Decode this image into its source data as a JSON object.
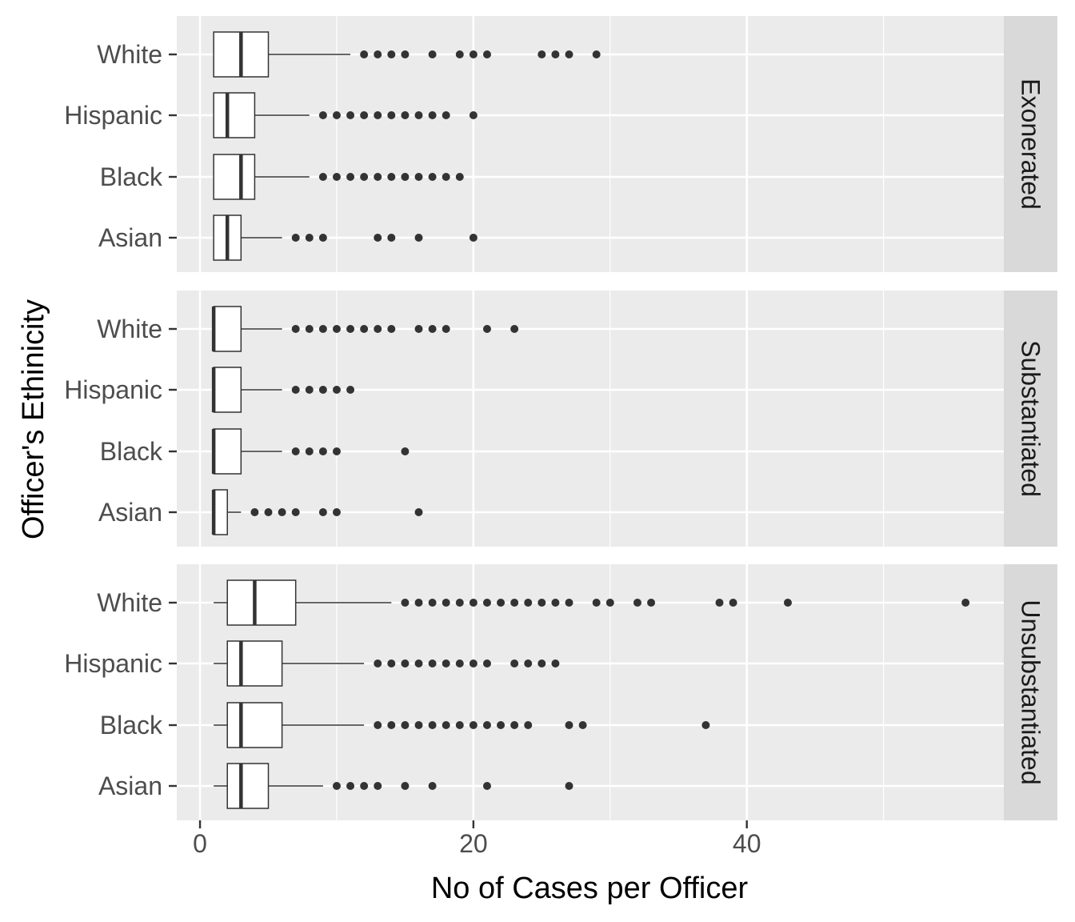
{
  "chart_data": {
    "type": "boxplot",
    "orientation": "horizontal",
    "facet": "rows",
    "xlabel": "No of Cases per Officer",
    "ylabel": "Officer's Ethinicity",
    "xlim": [
      -1.7,
      58.8
    ],
    "x_ticks": [
      0,
      20,
      40
    ],
    "categories": [
      "White",
      "Hispanic",
      "Black",
      "Asian"
    ],
    "grid": true,
    "colors": {
      "panel_bg": "#ebebeb",
      "strip_bg": "#d9d9d9",
      "grid": "#ffffff",
      "box_fill": "#ffffff",
      "box_line": "#333333",
      "outlier": "#333333"
    },
    "panels": [
      {
        "label": "Exonerated",
        "groups": [
          {
            "name": "White",
            "whisker_low": 1,
            "q1": 1,
            "median": 3,
            "q3": 5,
            "whisker_high": 11,
            "outliers": [
              12,
              13,
              14,
              15,
              17,
              19,
              20,
              21,
              25,
              26,
              27,
              29
            ]
          },
          {
            "name": "Hispanic",
            "whisker_low": 1,
            "q1": 1,
            "median": 2,
            "q3": 4,
            "whisker_high": 8,
            "outliers": [
              9,
              10,
              11,
              12,
              13,
              14,
              15,
              16,
              17,
              18,
              20
            ]
          },
          {
            "name": "Black",
            "whisker_low": 1,
            "q1": 1,
            "median": 3,
            "q3": 4,
            "whisker_high": 8,
            "outliers": [
              9,
              10,
              11,
              12,
              13,
              14,
              15,
              16,
              17,
              18,
              19
            ]
          },
          {
            "name": "Asian",
            "whisker_low": 1,
            "q1": 1,
            "median": 2,
            "q3": 3,
            "whisker_high": 6,
            "outliers": [
              7,
              8,
              9,
              13,
              14,
              16,
              20
            ]
          }
        ]
      },
      {
        "label": "Substantiated",
        "groups": [
          {
            "name": "White",
            "whisker_low": 1,
            "q1": 1,
            "median": 1,
            "q3": 3,
            "whisker_high": 6,
            "outliers": [
              7,
              8,
              9,
              10,
              11,
              12,
              13,
              14,
              16,
              17,
              18,
              21,
              23
            ]
          },
          {
            "name": "Hispanic",
            "whisker_low": 1,
            "q1": 1,
            "median": 1,
            "q3": 3,
            "whisker_high": 6,
            "outliers": [
              7,
              8,
              9,
              10,
              11
            ]
          },
          {
            "name": "Black",
            "whisker_low": 1,
            "q1": 1,
            "median": 1,
            "q3": 3,
            "whisker_high": 6,
            "outliers": [
              7,
              8,
              9,
              10,
              15
            ]
          },
          {
            "name": "Asian",
            "whisker_low": 1,
            "q1": 1,
            "median": 1,
            "q3": 2,
            "whisker_high": 3,
            "outliers": [
              4,
              5,
              6,
              7,
              9,
              10,
              16
            ]
          }
        ]
      },
      {
        "label": "Unsubstantiated",
        "groups": [
          {
            "name": "White",
            "whisker_low": 1,
            "q1": 2,
            "median": 4,
            "q3": 7,
            "whisker_high": 14,
            "outliers": [
              15,
              16,
              17,
              18,
              19,
              20,
              21,
              22,
              23,
              24,
              25,
              26,
              27,
              29,
              30,
              32,
              33,
              38,
              39,
              43,
              56
            ]
          },
          {
            "name": "Hispanic",
            "whisker_low": 1,
            "q1": 2,
            "median": 3,
            "q3": 6,
            "whisker_high": 12,
            "outliers": [
              13,
              14,
              15,
              16,
              17,
              18,
              19,
              20,
              21,
              23,
              24,
              25,
              26
            ]
          },
          {
            "name": "Black",
            "whisker_low": 1,
            "q1": 2,
            "median": 3,
            "q3": 6,
            "whisker_high": 12,
            "outliers": [
              13,
              14,
              15,
              16,
              17,
              18,
              19,
              20,
              21,
              22,
              23,
              24,
              27,
              28,
              37
            ]
          },
          {
            "name": "Asian",
            "whisker_low": 1,
            "q1": 2,
            "median": 3,
            "q3": 5,
            "whisker_high": 9,
            "outliers": [
              10,
              11,
              12,
              13,
              15,
              17,
              21,
              27
            ]
          }
        ]
      }
    ]
  }
}
